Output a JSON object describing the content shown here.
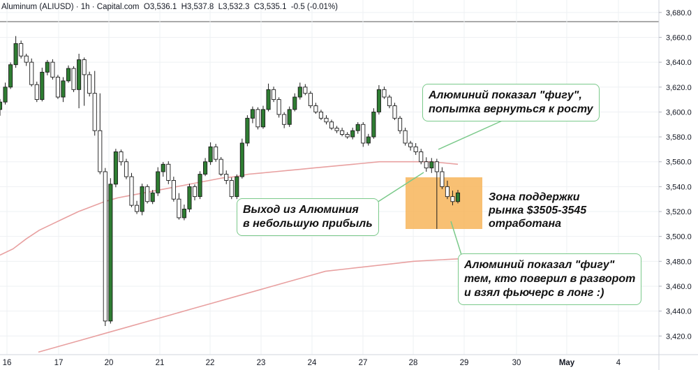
{
  "header": {
    "symbol": "Aluminum (ALIUSD)",
    "interval": "1h",
    "source": "Capital.com",
    "ohlc": "O3,536.1  H3,537.8  L3,532.3  C3,535.1  -0.5 (-0.01%)"
  },
  "colors": {
    "candle_up": "#2e7d32",
    "candle_down": "#1b1b1b",
    "ma": "#e8a0a0",
    "zone_fill": "#f7b55a",
    "note_border": "#7ac98a",
    "grid": "#eef0f3",
    "axis_text": "#131722"
  },
  "annotations": {
    "top": "Алюминий показал \"фигу\",\nпопытка вернуться к росту",
    "exit": "Выход из Алюминия\nв небольшую прибыль",
    "zone": "Зона поддержки\nрынка $3505-3545\nотработана",
    "bottom": "Алюминий показал \"фигу\"\nтем, кто поверил в разворот\nи взял фьючерс в лонг :)"
  },
  "chart_data": {
    "type": "candlestick",
    "title": "",
    "ylim": [
      3405,
      3690
    ],
    "y_ticks": [
      "3,420.0",
      "3,440.0",
      "3,460.0",
      "3,480.0",
      "3,500.0",
      "3,520.0",
      "3,540.0",
      "3,560.0",
      "3,580.0",
      "3,600.0",
      "3,620.0",
      "3,640.0",
      "3,660.0",
      "3,680.0"
    ],
    "x_ticks": [
      "16",
      "17",
      "20",
      "21",
      "22",
      "23",
      "24",
      "27",
      "28",
      "29",
      "30",
      "May",
      "4"
    ],
    "last_price": "3,535.1",
    "support_zone": {
      "low": 3505,
      "high": 3545,
      "from": "28",
      "to": "29"
    },
    "series": [
      {
        "values": [
          3608,
          3620,
          3638,
          3655,
          3645,
          3640,
          3622,
          3610,
          3632,
          3640,
          3628,
          3612,
          3625,
          3635,
          3618,
          3642,
          3630,
          3615,
          3585,
          3552,
          3432,
          3542,
          3568,
          3560,
          3548,
          3525,
          3520,
          3540,
          3528,
          3535,
          3552,
          3558,
          3545,
          3530,
          3515,
          3522,
          3540,
          3532,
          3550,
          3560,
          3572,
          3562,
          3550,
          3545,
          3532,
          3548,
          3575,
          3595,
          3602,
          3588,
          3602,
          3618,
          3610,
          3598,
          3590,
          3602,
          3612,
          3620,
          3615,
          3605,
          3600,
          3595,
          3592,
          3587,
          3585,
          3582,
          3580,
          3585,
          3590,
          3575,
          3580,
          3600,
          3618,
          3612,
          3605,
          3595,
          3585,
          3575,
          3572,
          3568,
          3560,
          3555,
          3560,
          3552,
          3540,
          3532,
          3528,
          3535
        ]
      },
      {
        "values": [
          3485,
          3490,
          3498,
          3505,
          3510,
          3515,
          3520,
          3524,
          3528,
          3531,
          3533,
          3535,
          3537,
          3539,
          3541,
          3543,
          3545,
          3547,
          3548,
          3550,
          3551,
          3552,
          3553,
          3554,
          3555,
          3556,
          3557,
          3558,
          3559,
          3560,
          3560,
          3560,
          3560,
          3560,
          3559,
          3558
        ]
      },
      {
        "values": [
          3407,
          3412,
          3417,
          3422,
          3427,
          3432,
          3437,
          3442,
          3447,
          3452,
          3457,
          3462,
          3467,
          3472,
          3474,
          3476,
          3478,
          3480,
          3481,
          3482
        ]
      }
    ]
  }
}
